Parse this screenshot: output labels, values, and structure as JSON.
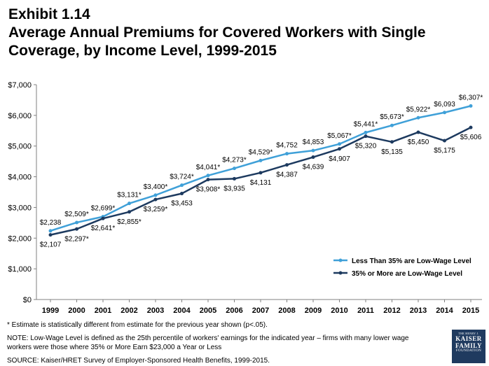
{
  "header": {
    "exhibit": "Exhibit 1.14",
    "title": "Average Annual Premiums for Covered Workers with Single Coverage, by Income Level, 1999-2015"
  },
  "chart_data": {
    "type": "line",
    "x": [
      "1999",
      "2000",
      "2001",
      "2002",
      "2003",
      "2004",
      "2005",
      "2006",
      "2007",
      "2008",
      "2009",
      "2010",
      "2011",
      "2012",
      "2013",
      "2014",
      "2015"
    ],
    "ylim": [
      0,
      7000
    ],
    "yticks": [
      0,
      1000,
      2000,
      3000,
      4000,
      5000,
      6000,
      7000
    ],
    "ytick_labels": [
      "$0",
      "$1,000",
      "$2,000",
      "$3,000",
      "$4,000",
      "$5,000",
      "$6,000",
      "$7,000"
    ],
    "grid": false,
    "legend_position": "bottom-right",
    "series": [
      {
        "name": "Less Than 35% are Low-Wage Level",
        "color": "#3fa0d8",
        "values": [
          2238,
          2509,
          2699,
          3131,
          3400,
          3724,
          4041,
          4273,
          4529,
          4752,
          4853,
          5067,
          5441,
          5673,
          5922,
          6093,
          6307
        ],
        "labels": [
          "$2,238",
          "$2,509*",
          "$2,699*",
          "$3,131*",
          "$3,400*",
          "$3,724*",
          "$4,041*",
          "$4,273*",
          "$4,529*",
          "$4,752",
          "$4,853",
          "$5,067*",
          "$5,441*",
          "$5,673*",
          "$5,922*",
          "$6,093",
          "$6,307*"
        ]
      },
      {
        "name": "35% or More are Low-Wage Level",
        "color": "#1d3a5f",
        "values": [
          2107,
          2297,
          2641,
          2855,
          3259,
          3453,
          3908,
          3935,
          4131,
          4387,
          4639,
          4907,
          5320,
          5135,
          5450,
          5175,
          5606
        ],
        "labels": [
          "$2,107",
          "$2,297*",
          "$2,641*",
          "$2,855*",
          "$3,259*",
          "$3,453",
          "$3,908*",
          "$3,935",
          "$4,131",
          "$4,387",
          "$4,639",
          "$4,907",
          "$5,320",
          "$5,135",
          "$5,450",
          "$5,175",
          "$5,606"
        ]
      }
    ]
  },
  "footnote": "* Estimate is statistically different from estimate for the previous year shown (p<.05).",
  "note": "NOTE: Low-Wage Level is defined as the 25th percentile of workers' earnings for the indicated year – firms with many lower wage workers were those where 35% or More Earn $23,000 a Year or Less",
  "source": "SOURCE:  Kaiser/HRET Survey of Employer-Sponsored Health Benefits, 1999-2015.",
  "logo": {
    "line1": "THE HENRY J.",
    "line2": "KAISER",
    "line3": "FAMILY",
    "line4": "FOUNDATION"
  }
}
